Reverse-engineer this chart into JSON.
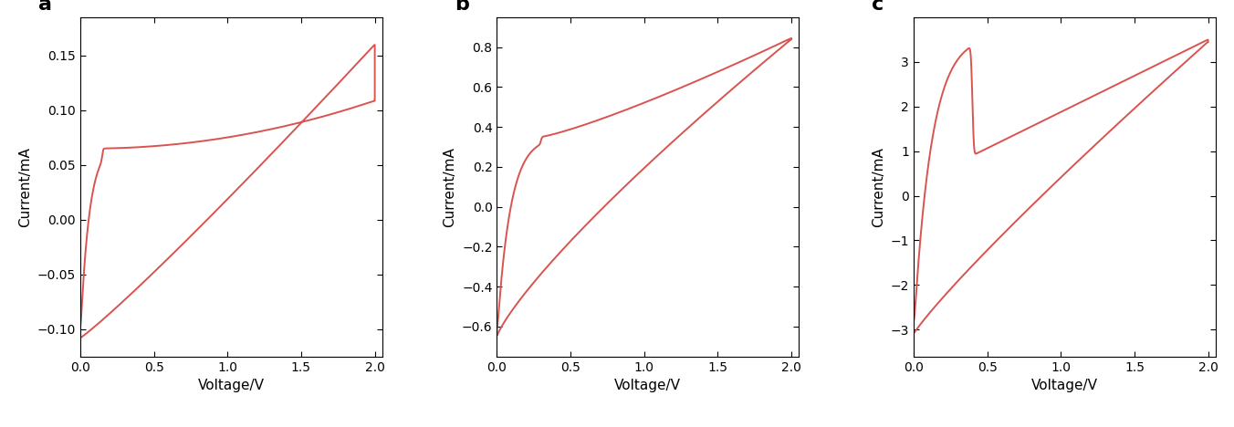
{
  "panels": [
    {
      "label": "a",
      "ylabel": "Current/mA",
      "xlabel": "Voltage/V",
      "xlim": [
        0,
        2.05
      ],
      "ylim": [
        -0.125,
        0.185
      ],
      "yticks": [
        -0.1,
        -0.05,
        0,
        0.05,
        0.1,
        0.15
      ],
      "xticks": [
        0,
        0.5,
        1.0,
        1.5,
        2.0
      ],
      "curve_color": "#d9534f"
    },
    {
      "label": "b",
      "ylabel": "Current/mA",
      "xlabel": "Voltage/V",
      "xlim": [
        0,
        2.05
      ],
      "ylim": [
        -0.75,
        0.95
      ],
      "yticks": [
        -0.6,
        -0.4,
        -0.2,
        0,
        0.2,
        0.4,
        0.6,
        0.8
      ],
      "xticks": [
        0,
        0.5,
        1.0,
        1.5,
        2.0
      ],
      "curve_color": "#d9534f"
    },
    {
      "label": "c",
      "ylabel": "Current/mA",
      "xlabel": "Voltage/V",
      "xlim": [
        0,
        2.05
      ],
      "ylim": [
        -3.6,
        4.0
      ],
      "yticks": [
        -3,
        -2,
        -1,
        0,
        1,
        2,
        3
      ],
      "xticks": [
        0,
        0.5,
        1.0,
        1.5,
        2.0
      ],
      "curve_color": "#d9534f"
    }
  ],
  "line_width": 1.4,
  "background_color": "#ffffff",
  "label_fontsize": 16,
  "tick_fontsize": 10,
  "axis_label_fontsize": 11
}
